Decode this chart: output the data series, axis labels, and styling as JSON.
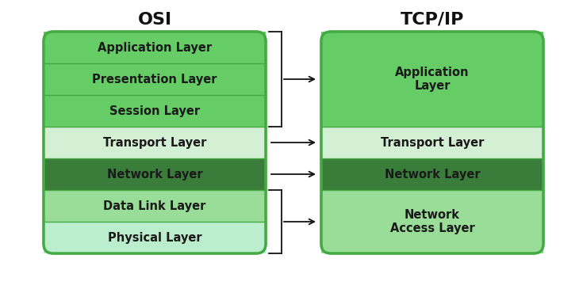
{
  "title_osi": "OSI",
  "title_tcpip": "TCP/IP",
  "background_color": "#ffffff",
  "osi_layers": [
    {
      "label": "Application Layer",
      "color": "#66cc66",
      "text_color": "#1a1a1a"
    },
    {
      "label": "Presentation Layer",
      "color": "#66cc66",
      "text_color": "#1a1a1a"
    },
    {
      "label": "Session Layer",
      "color": "#66cc66",
      "text_color": "#1a1a1a"
    },
    {
      "label": "Transport Layer",
      "color": "#d4f0d4",
      "text_color": "#1a1a1a"
    },
    {
      "label": "Network Layer",
      "color": "#3a7d3a",
      "text_color": "#1a1a1a"
    },
    {
      "label": "Data Link Layer",
      "color": "#99dd99",
      "text_color": "#1a1a1a"
    },
    {
      "label": "Physical Layer",
      "color": "#bbeecc",
      "text_color": "#1a1a1a"
    }
  ],
  "tcp_layers": [
    {
      "label": "Application\nLayer",
      "color": "#66cc66",
      "text_color": "#1a1a1a",
      "span": 3
    },
    {
      "label": "Transport Layer",
      "color": "#d4f0d4",
      "text_color": "#1a1a1a",
      "span": 1
    },
    {
      "label": "Network Layer",
      "color": "#3a7d3a",
      "text_color": "#1a1a1a",
      "span": 1
    },
    {
      "label": "Network\nAccess Layer",
      "color": "#99dd99",
      "text_color": "#1a1a1a",
      "span": 2
    }
  ],
  "arrows": [
    {
      "osi_layers": [
        0,
        1,
        2
      ],
      "tcp_idx": 0,
      "bracket": true
    },
    {
      "osi_layers": [
        3
      ],
      "tcp_idx": 1,
      "bracket": false
    },
    {
      "osi_layers": [
        4
      ],
      "tcp_idx": 2,
      "bracket": false
    },
    {
      "osi_layers": [
        5,
        6
      ],
      "tcp_idx": 3,
      "bracket": true
    }
  ],
  "outer_border_color": "#44aa44",
  "sep_color": "#44aa44",
  "arrow_color": "#111111",
  "title_fontsize": 16,
  "layer_fontsize": 10.5
}
